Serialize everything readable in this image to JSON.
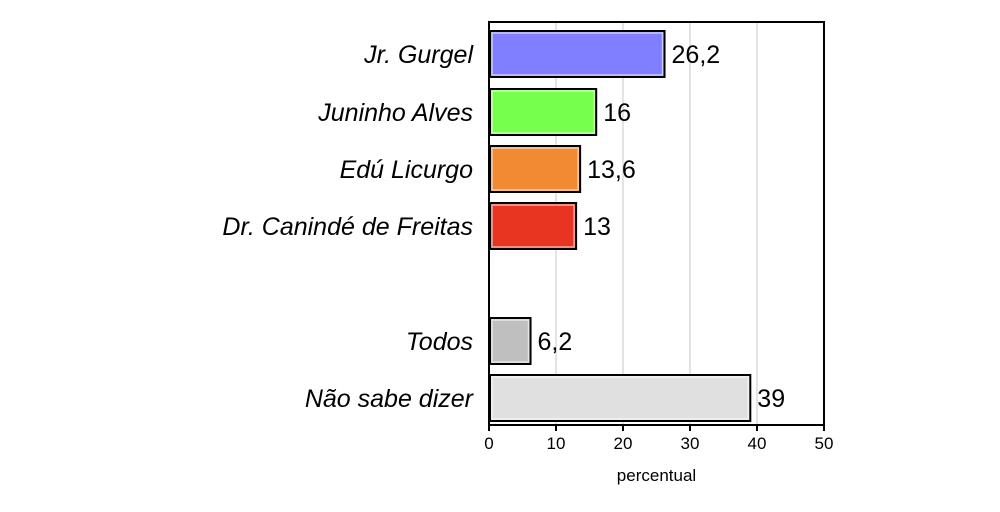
{
  "chart_data": {
    "type": "bar",
    "orientation": "horizontal",
    "categories": [
      "Jr. Gurgel",
      "Juninho Alves",
      "Edú Licurgo",
      "Dr. Canindé de Freitas",
      "Todos",
      "Não sabe dizer"
    ],
    "values": [
      26.2,
      16,
      13.6,
      13,
      6.2,
      39
    ],
    "value_labels": [
      "26,2",
      "16",
      "13,6",
      "13",
      "6,2",
      "39"
    ],
    "colors": [
      "#7f7fff",
      "#77ff4d",
      "#f08a33",
      "#e83522",
      "#bfbfbf",
      "#e0e0e0"
    ],
    "xlabel": "percentual",
    "xlim": [
      0,
      50
    ],
    "xticks": [
      0,
      10,
      20,
      30,
      40,
      50
    ],
    "grid": true,
    "legend": "none"
  }
}
